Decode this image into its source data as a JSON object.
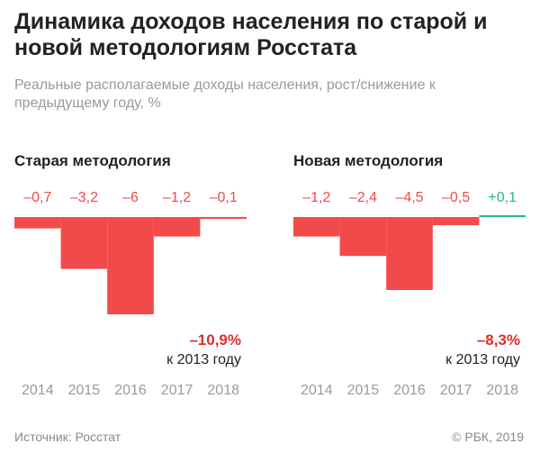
{
  "header": {
    "title": "Динамика доходов населения по старой и новой методологиям Росстата",
    "subtitle": "Реальные располагаемые доходы населения, рост/снижение к предыдущему году, %"
  },
  "chart_data": [
    {
      "type": "bar",
      "title": "Старая методология",
      "categories": [
        "2014",
        "2015",
        "2016",
        "2017",
        "2018"
      ],
      "values": [
        -0.7,
        -3.2,
        -6,
        -1.2,
        -0.1
      ],
      "value_labels": [
        "–0,7",
        "–3,2",
        "–6",
        "–1,2",
        "–0,1"
      ],
      "summary_value": "–10,9%",
      "summary_text": "к 2013 году",
      "ylim": [
        -6,
        0
      ]
    },
    {
      "type": "bar",
      "title": "Новая методология",
      "categories": [
        "2014",
        "2015",
        "2016",
        "2017",
        "2018"
      ],
      "values": [
        -1.2,
        -2.4,
        -4.5,
        -0.5,
        0.1
      ],
      "value_labels": [
        "–1,2",
        "–2,4",
        "–4,5",
        "–0,5",
        "+0,1"
      ],
      "summary_value": "–8,3%",
      "summary_text": "к 2013 году",
      "ylim": [
        -6,
        0
      ]
    }
  ],
  "colors": {
    "negative": "#f24a4a",
    "positive": "#2fb586",
    "summary": "#e32b2b",
    "axis_label": "#9a9a9a"
  },
  "footer": {
    "source": "Источник: Росстат",
    "copyright": "© РБК, 2019"
  }
}
